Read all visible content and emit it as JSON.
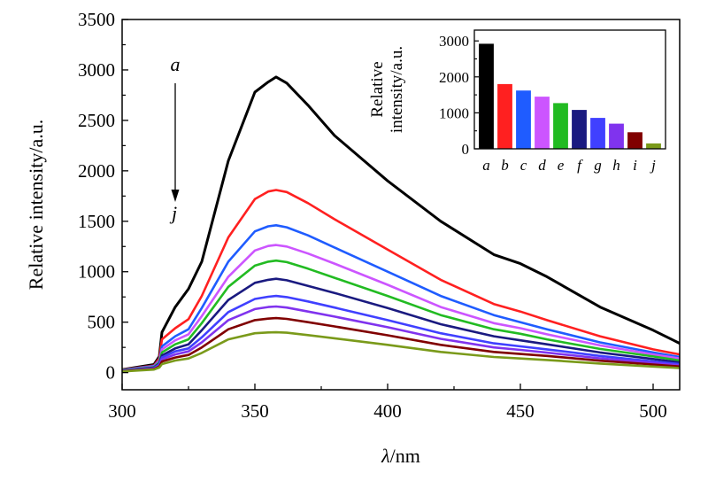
{
  "chart_data": [
    {
      "type": "line",
      "title": "",
      "xlabel_symbol": "λ",
      "xlabel_unit": "/nm",
      "ylabel": "Relative intensity/a.u.",
      "xlim": [
        300,
        510
      ],
      "ylim": [
        -170,
        3500
      ],
      "xticks": [
        "300",
        "350",
        "400",
        "450",
        "500"
      ],
      "yticks": [
        "0",
        "500",
        "1000",
        "1500",
        "2000",
        "2500",
        "3000",
        "3500"
      ],
      "annotation": {
        "start": "a",
        "end": "j",
        "direction": "down"
      },
      "x": [
        300,
        312,
        314,
        315,
        320,
        325,
        330,
        340,
        350,
        355,
        358,
        362,
        370,
        380,
        400,
        420,
        440,
        450,
        460,
        480,
        500,
        510
      ],
      "series": [
        {
          "name": "a",
          "color": "#000000",
          "values": [
            30,
            80,
            160,
            400,
            650,
            830,
            1100,
            2100,
            2780,
            2880,
            2930,
            2870,
            2650,
            2350,
            1900,
            1500,
            1170,
            1080,
            950,
            650,
            420,
            290
          ]
        },
        {
          "name": "b",
          "color": "#ff2020",
          "values": [
            28,
            70,
            140,
            330,
            440,
            530,
            760,
            1340,
            1720,
            1795,
            1810,
            1790,
            1680,
            1520,
            1220,
            920,
            680,
            605,
            520,
            360,
            230,
            180
          ]
        },
        {
          "name": "c",
          "color": "#1f5cff",
          "values": [
            26,
            65,
            120,
            260,
            360,
            430,
            640,
            1100,
            1400,
            1450,
            1460,
            1440,
            1360,
            1240,
            1000,
            760,
            570,
            500,
            430,
            300,
            200,
            155
          ]
        },
        {
          "name": "d",
          "color": "#cc55ff",
          "values": [
            24,
            60,
            110,
            230,
            320,
            380,
            560,
            950,
            1210,
            1255,
            1265,
            1250,
            1180,
            1080,
            870,
            650,
            490,
            440,
            380,
            270,
            180,
            140
          ]
        },
        {
          "name": "e",
          "color": "#22bb22",
          "values": [
            22,
            55,
            100,
            200,
            280,
            330,
            490,
            850,
            1060,
            1100,
            1110,
            1095,
            1030,
            940,
            760,
            570,
            430,
            385,
            330,
            235,
            160,
            120
          ]
        },
        {
          "name": "f",
          "color": "#1a1a80",
          "values": [
            20,
            50,
            90,
            170,
            240,
            280,
            420,
            720,
            890,
            920,
            930,
            915,
            860,
            790,
            640,
            480,
            360,
            320,
            280,
            200,
            135,
            100
          ]
        },
        {
          "name": "g",
          "color": "#4040ff",
          "values": [
            18,
            45,
            80,
            150,
            210,
            240,
            350,
            600,
            730,
            752,
            760,
            748,
            705,
            645,
            520,
            390,
            290,
            260,
            230,
            165,
            110,
            85
          ]
        },
        {
          "name": "h",
          "color": "#8033ee",
          "values": [
            16,
            40,
            70,
            130,
            180,
            210,
            300,
            520,
            630,
            650,
            655,
            645,
            605,
            555,
            450,
            335,
            250,
            225,
            198,
            142,
            95,
            72
          ]
        },
        {
          "name": "i",
          "color": "#800000",
          "values": [
            14,
            35,
            60,
            110,
            150,
            175,
            250,
            430,
            520,
            535,
            540,
            532,
            500,
            458,
            370,
            275,
            205,
            185,
            165,
            118,
            80,
            60
          ]
        },
        {
          "name": "j",
          "color": "#7a9a1a",
          "values": [
            12,
            30,
            50,
            85,
            120,
            140,
            195,
            330,
            390,
            398,
            400,
            395,
            372,
            340,
            275,
            205,
            155,
            140,
            125,
            90,
            60,
            45
          ]
        }
      ]
    },
    {
      "type": "bar",
      "title": "",
      "ylabel_line1": "Relative",
      "ylabel_line2": "intensity/a.u.",
      "ylim": [
        0,
        3300
      ],
      "yticks": [
        "0",
        "1000",
        "2000",
        "3000"
      ],
      "categories": [
        "a",
        "b",
        "c",
        "d",
        "e",
        "f",
        "g",
        "h",
        "i",
        "j"
      ],
      "values": [
        2920,
        1800,
        1620,
        1450,
        1270,
        1080,
        860,
        700,
        460,
        150
      ],
      "colors": [
        "#000000",
        "#ff2020",
        "#1f5cff",
        "#cc55ff",
        "#22bb22",
        "#1a1a80",
        "#4040ff",
        "#8033ee",
        "#800000",
        "#7a9a1a"
      ]
    }
  ]
}
